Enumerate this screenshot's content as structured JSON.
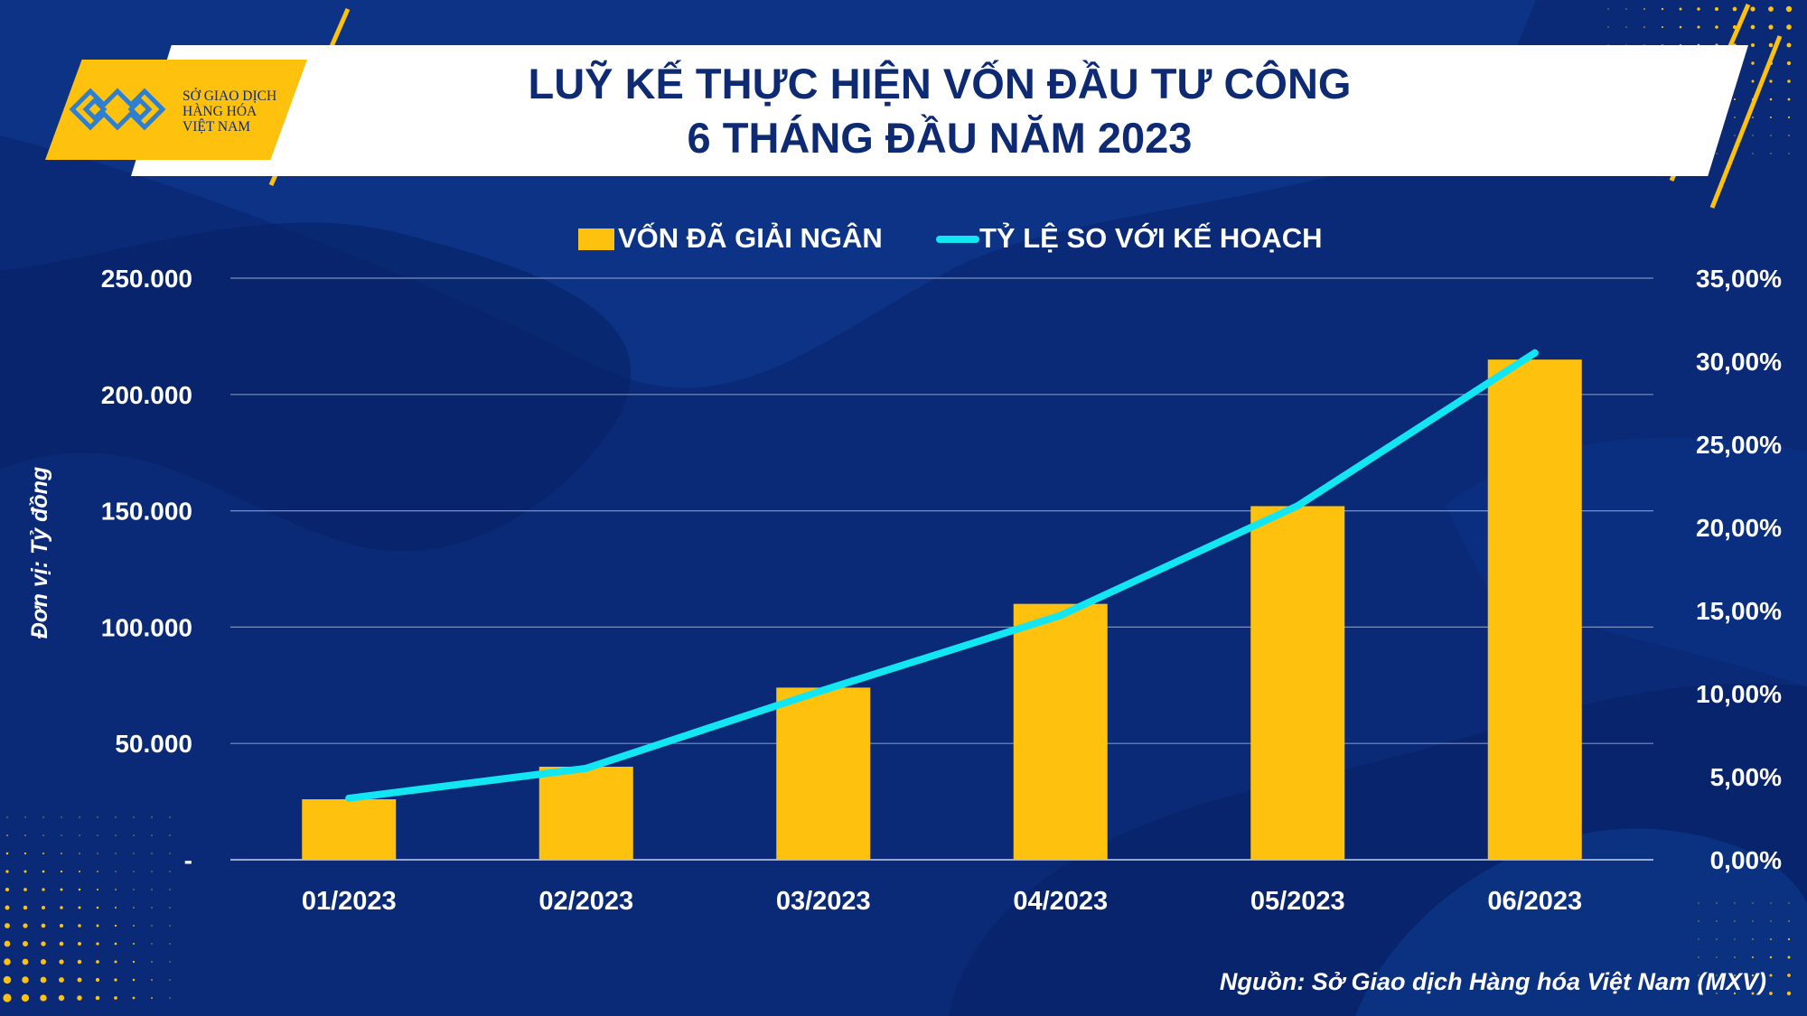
{
  "logo": {
    "lines": [
      "SỞ GIAO DỊCH",
      "HÀNG HÓA",
      "VIỆT NAM"
    ]
  },
  "header": {
    "title_line1": "LUỸ KẾ THỰC HIỆN VỐN ĐẦU TƯ CÔNG",
    "title_line2": "6 THÁNG ĐẦU NĂM 2023"
  },
  "source": "Nguồn: Sở Giao dịch Hàng hóa Việt Nam (MXV)",
  "colors": {
    "background": "#0a2a78",
    "bar": "#fec20e",
    "line": "#12e6f2",
    "accent": "#fec20e",
    "title": "#0d2a72"
  },
  "chart_data": {
    "type": "bar",
    "categories": [
      "01/2023",
      "02/2023",
      "03/2023",
      "04/2023",
      "05/2023",
      "06/2023"
    ],
    "series": [
      {
        "name": "VỐN ĐÃ GIẢI NGÂN",
        "type": "bar",
        "axis": "left",
        "values": [
          26000,
          40000,
          74000,
          110000,
          152000,
          215000
        ]
      },
      {
        "name": "TỶ LỆ SO VỚI KẾ HOẠCH",
        "type": "line",
        "axis": "right",
        "values": [
          3.7,
          5.5,
          10.2,
          14.7,
          21.3,
          30.5
        ]
      }
    ],
    "ylabel": "Đơn vị: Tỷ đồng",
    "ylim": [
      0,
      250000
    ],
    "y_ticks": [
      "-",
      "50.000",
      "100.000",
      "150.000",
      "200.000",
      "250.000"
    ],
    "y2lim": [
      0,
      35
    ],
    "y2_ticks": [
      "0,00%",
      "5,00%",
      "10,00%",
      "15,00%",
      "20,00%",
      "25,00%",
      "30,00%",
      "35,00%"
    ],
    "grid": true,
    "legend_position": "top-center"
  }
}
